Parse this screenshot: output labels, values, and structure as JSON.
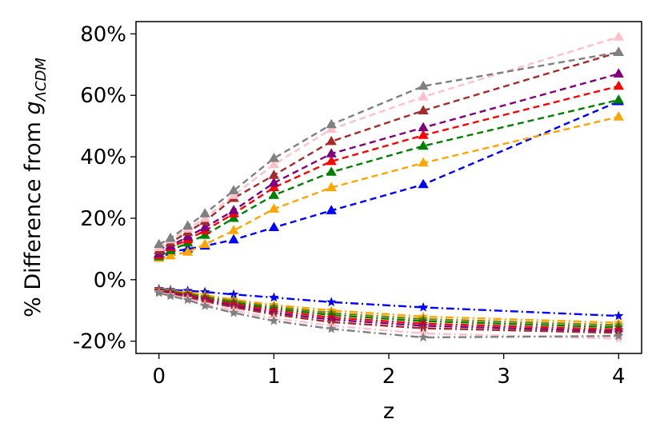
{
  "chart_data": {
    "type": "line",
    "xlabel": "z",
    "ylabel_prefix": "% Difference from ",
    "ylabel_symbol": "g",
    "ylabel_subscript": "ΛCDM",
    "xlim": [
      -0.2,
      4.2
    ],
    "ylim": [
      -24,
      84
    ],
    "xticks": [
      0,
      1,
      2,
      3,
      4
    ],
    "xtick_labels": [
      "0",
      "1",
      "2",
      "3",
      "4"
    ],
    "yticks": [
      -20,
      0,
      20,
      40,
      60,
      80
    ],
    "ytick_labels": [
      "-20%",
      "0%",
      "20%",
      "40%",
      "60%",
      "80%"
    ],
    "x": [
      0,
      0.1,
      0.25,
      0.4,
      0.65,
      1.0,
      1.5,
      2.3,
      4.0
    ],
    "series": [
      {
        "color": "#0000ff",
        "marker": "triangle",
        "dash": "dashed",
        "values": [
          8.2,
          9.0,
          10.0,
          11.0,
          13.0,
          17.0,
          22.5,
          31.0,
          58.0
        ]
      },
      {
        "color": "#ffa500",
        "marker": "triangle",
        "dash": "dashed",
        "values": [
          7.0,
          7.8,
          9.0,
          11.5,
          16.0,
          23.0,
          30.0,
          38.0,
          53.0
        ]
      },
      {
        "color": "#008000",
        "marker": "triangle",
        "dash": "dashed",
        "values": [
          7.5,
          9.5,
          12.0,
          14.5,
          20.0,
          27.5,
          35.0,
          43.5,
          58.5
        ]
      },
      {
        "color": "#ff0000",
        "marker": "triangle",
        "dash": "dashed",
        "values": [
          8.0,
          10.5,
          13.0,
          16.0,
          21.5,
          30.0,
          38.5,
          47.0,
          63.0
        ]
      },
      {
        "color": "#800080",
        "marker": "triangle",
        "dash": "dashed",
        "values": [
          8.5,
          11.0,
          14.0,
          17.0,
          22.5,
          31.5,
          41.0,
          49.5,
          67.0
        ]
      },
      {
        "color": "#a52a2a",
        "marker": "triangle",
        "dash": "dashed",
        "values": [
          9.5,
          12.0,
          15.5,
          19.0,
          26.5,
          34.0,
          45.0,
          55.0,
          74.0
        ]
      },
      {
        "color": "#ffc0cb",
        "marker": "triangle",
        "dash": "dashed",
        "values": [
          10.5,
          13.0,
          16.5,
          20.0,
          27.5,
          37.5,
          49.0,
          59.5,
          79.0
        ]
      },
      {
        "color": "#808080",
        "marker": "triangle",
        "dash": "dashed",
        "values": [
          11.5,
          13.5,
          17.5,
          21.5,
          29.0,
          39.5,
          50.5,
          63.0,
          74.0
        ]
      },
      {
        "color": "#0000ff",
        "marker": "star",
        "dash": "dashdot",
        "values": [
          -3.0,
          -3.3,
          -3.6,
          -4.0,
          -4.8,
          -5.8,
          -7.3,
          -9.0,
          -11.8
        ]
      },
      {
        "color": "#ffa500",
        "marker": "star",
        "dash": "dashdot",
        "values": [
          -3.2,
          -3.6,
          -4.2,
          -5.0,
          -6.5,
          -8.2,
          -10.0,
          -12.0,
          -14.0
        ]
      },
      {
        "color": "#808000",
        "marker": "star",
        "dash": "dashdot",
        "values": [
          -3.3,
          -3.8,
          -4.5,
          -5.5,
          -7.0,
          -8.8,
          -10.8,
          -12.8,
          -14.8
        ]
      },
      {
        "color": "#008000",
        "marker": "star",
        "dash": "dashdot",
        "values": [
          -3.5,
          -4.0,
          -4.8,
          -5.9,
          -7.5,
          -9.4,
          -11.5,
          -13.5,
          -15.5
        ]
      },
      {
        "color": "#ff0000",
        "marker": "star",
        "dash": "dashdot",
        "values": [
          -3.6,
          -4.2,
          -5.0,
          -6.2,
          -8.0,
          -10.0,
          -12.3,
          -14.3,
          -16.2
        ]
      },
      {
        "color": "#800080",
        "marker": "star",
        "dash": "dashdot",
        "values": [
          -3.7,
          -4.4,
          -5.3,
          -6.5,
          -8.5,
          -10.7,
          -13.0,
          -15.0,
          -16.8
        ]
      },
      {
        "color": "#a52a2a",
        "marker": "star",
        "dash": "dashdot",
        "values": [
          -3.9,
          -4.7,
          -5.7,
          -7.0,
          -9.0,
          -11.3,
          -13.8,
          -15.8,
          -17.3
        ]
      },
      {
        "color": "#ffc0cb",
        "marker": "star",
        "dash": "dashdot",
        "values": [
          -4.1,
          -5.0,
          -6.2,
          -8.0,
          -10.0,
          -12.5,
          -15.0,
          -17.5,
          -19.2
        ]
      },
      {
        "color": "#808080",
        "marker": "star",
        "dash": "dashdot",
        "values": [
          -4.3,
          -5.3,
          -6.6,
          -8.5,
          -10.8,
          -13.4,
          -16.0,
          -18.8,
          -18.3
        ]
      }
    ]
  }
}
